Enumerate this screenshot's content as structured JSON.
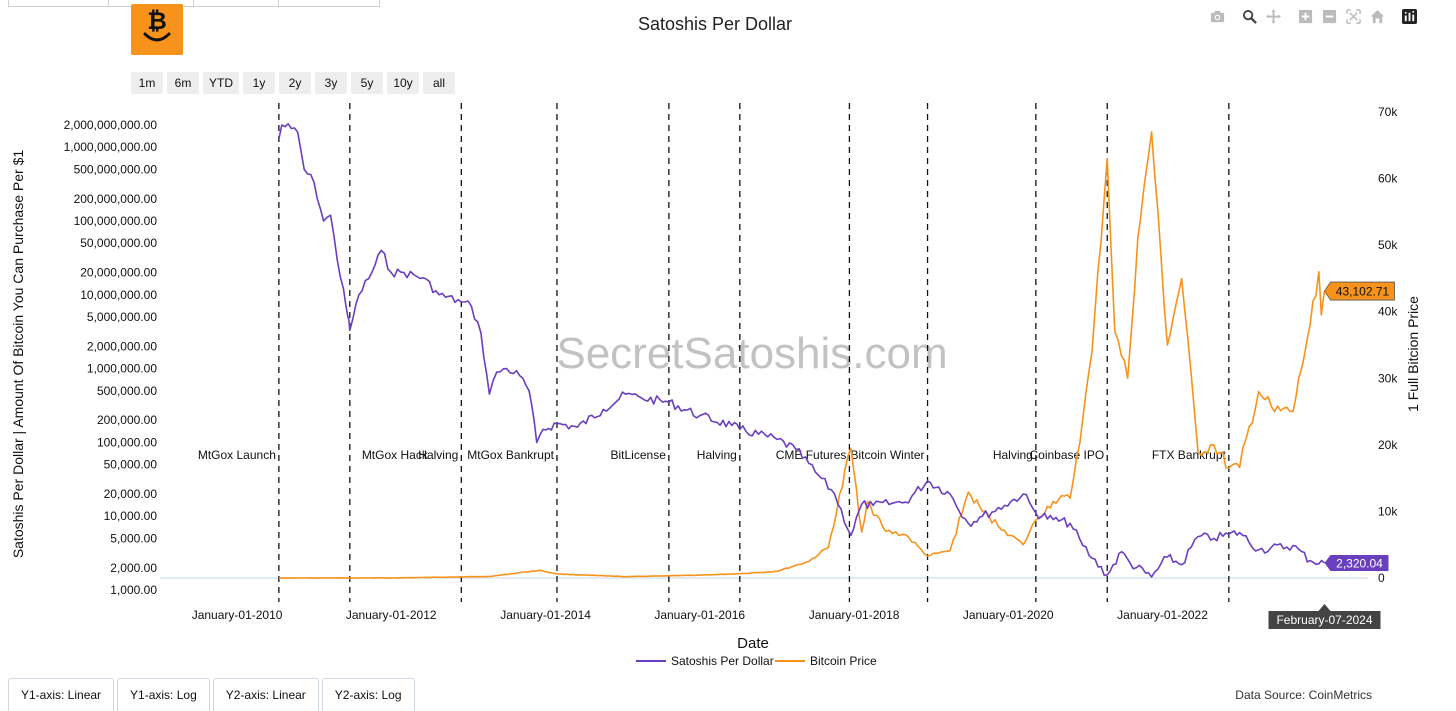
{
  "title": "Satoshis Per Dollar",
  "range_buttons": [
    "1m",
    "6m",
    "YTD",
    "1y",
    "2y",
    "3y",
    "5y",
    "10y",
    "all"
  ],
  "toolbar_icons": [
    "camera-icon",
    "zoom-icon",
    "pan-icon",
    "zoom-in-icon",
    "zoom-out-icon",
    "autoscale-icon",
    "reset-axes-icon",
    "plotly-logo-icon"
  ],
  "bottom_buttons": [
    "Y1-axis: Linear",
    "Y1-axis: Log",
    "Y2-axis: Linear",
    "Y2-axis: Log"
  ],
  "data_source": "Data Source: CoinMetrics",
  "watermark": "SecretSatoshis.com",
  "colors": {
    "sats": "#6a3fbf",
    "btc": "#f7931a",
    "logo_bg": "#f7931a"
  },
  "chart_data": {
    "type": "line",
    "title": "Satoshis Per Dollar",
    "xlabel": "Date",
    "y1label": "Satoshis Per Dollar | Amount Of Bitcoin You Can Purchase Per $1",
    "y2label": "1 Full Bitcion Price",
    "y1_scale": "log",
    "y1_ticks": [
      {
        "v": 1000,
        "label": "1,000.00"
      },
      {
        "v": 2000,
        "label": "2,000.00"
      },
      {
        "v": 5000,
        "label": "5,000.00"
      },
      {
        "v": 10000,
        "label": "10,000.00"
      },
      {
        "v": 20000,
        "label": "20,000.00"
      },
      {
        "v": 50000,
        "label": "50,000.00"
      },
      {
        "v": 100000,
        "label": "100,000.00"
      },
      {
        "v": 200000,
        "label": "200,000.00"
      },
      {
        "v": 500000,
        "label": "500,000.00"
      },
      {
        "v": 1000000,
        "label": "1,000,000.00"
      },
      {
        "v": 2000000,
        "label": "2,000,000.00"
      },
      {
        "v": 5000000,
        "label": "5,000,000.00"
      },
      {
        "v": 10000000,
        "label": "10,000,000.00"
      },
      {
        "v": 20000000,
        "label": "20,000,000.00"
      },
      {
        "v": 50000000,
        "label": "50,000,000.00"
      },
      {
        "v": 100000000,
        "label": "100,000,000.00"
      },
      {
        "v": 200000000,
        "label": "200,000,000.00"
      },
      {
        "v": 500000000,
        "label": "500,000,000.00"
      },
      {
        "v": 1000000000,
        "label": "1,000,000,000.00"
      },
      {
        "v": 2000000000,
        "label": "2,000,000,000.00"
      }
    ],
    "y2_range": [
      0,
      70000
    ],
    "y2_ticks": [
      {
        "v": 0,
        "label": "0"
      },
      {
        "v": 10000,
        "label": "10k"
      },
      {
        "v": 20000,
        "label": "20k"
      },
      {
        "v": 30000,
        "label": "30k"
      },
      {
        "v": 40000,
        "label": "40k"
      },
      {
        "v": 50000,
        "label": "50k"
      },
      {
        "v": 60000,
        "label": "60k"
      },
      {
        "v": 70000,
        "label": "70k"
      }
    ],
    "x_range": [
      "2009-01-01",
      "2024-08-31"
    ],
    "x_ticks": [
      {
        "date": "2010-01-01",
        "label": "January-01-2010"
      },
      {
        "date": "2012-01-01",
        "label": "January-01-2012"
      },
      {
        "date": "2014-01-01",
        "label": "January-01-2014"
      },
      {
        "date": "2016-01-01",
        "label": "January-01-2016"
      },
      {
        "date": "2018-01-01",
        "label": "January-01-2018"
      },
      {
        "date": "2020-01-01",
        "label": "January-01-2020"
      },
      {
        "date": "2022-01-01",
        "label": "January-01-2022"
      }
    ],
    "events": [
      {
        "date": "2010-07-18",
        "label": "MtGox Launch",
        "side": "left"
      },
      {
        "date": "2011-06-19",
        "label": "MtGox Hack",
        "side": "right"
      },
      {
        "date": "2012-11-28",
        "label": "Halving",
        "side": "left"
      },
      {
        "date": "2014-02-24",
        "label": "MtGox Bankrupt",
        "side": "left"
      },
      {
        "date": "2015-08-08",
        "label": "BitLicense",
        "side": "left"
      },
      {
        "date": "2016-07-09",
        "label": "Halving",
        "side": "left"
      },
      {
        "date": "2017-12-10",
        "label": "CME Futures",
        "side": "left"
      },
      {
        "date": "2018-12-15",
        "label": "Bitcoin Winter",
        "side": "left"
      },
      {
        "date": "2020-05-11",
        "label": "Halving",
        "side": "left"
      },
      {
        "date": "2021-04-14",
        "label": "Coinbase IPO",
        "side": "left"
      },
      {
        "date": "2022-11-11",
        "label": "FTX Bankrupt",
        "side": "left"
      }
    ],
    "series": [
      {
        "name": "Satoshis Per Dollar",
        "axis": "y1",
        "points": [
          [
            "2010-07-18",
            1300000000
          ],
          [
            "2010-08-01",
            2000000000
          ],
          [
            "2010-09-15",
            1800000000
          ],
          [
            "2010-10-15",
            1600000000
          ],
          [
            "2010-11-15",
            500000000
          ],
          [
            "2011-01-01",
            330000000
          ],
          [
            "2011-02-15",
            100000000
          ],
          [
            "2011-03-20",
            120000000
          ],
          [
            "2011-04-20",
            30000000
          ],
          [
            "2011-05-20",
            12000000
          ],
          [
            "2011-06-10",
            5000000
          ],
          [
            "2011-06-19",
            3300000
          ],
          [
            "2011-08-01",
            10000000
          ],
          [
            "2011-10-01",
            20000000
          ],
          [
            "2011-11-15",
            40000000
          ],
          [
            "2012-01-01",
            20000000
          ],
          [
            "2012-03-01",
            20000000
          ],
          [
            "2012-06-01",
            17000000
          ],
          [
            "2012-08-15",
            10000000
          ],
          [
            "2012-11-28",
            8000000
          ],
          [
            "2013-01-15",
            7000000
          ],
          [
            "2013-03-01",
            3000000
          ],
          [
            "2013-04-10",
            450000
          ],
          [
            "2013-05-15",
            900000
          ],
          [
            "2013-07-01",
            1000000
          ],
          [
            "2013-09-01",
            800000
          ],
          [
            "2013-10-15",
            500000
          ],
          [
            "2013-11-20",
            100000
          ],
          [
            "2013-12-20",
            150000
          ],
          [
            "2014-02-24",
            180000
          ],
          [
            "2014-06-01",
            160000
          ],
          [
            "2014-10-01",
            280000
          ],
          [
            "2015-01-15",
            450000
          ],
          [
            "2015-04-01",
            400000
          ],
          [
            "2015-08-08",
            350000
          ],
          [
            "2016-01-01",
            230000
          ],
          [
            "2016-06-01",
            170000
          ],
          [
            "2016-07-09",
            150000
          ],
          [
            "2017-01-01",
            110000
          ],
          [
            "2017-04-01",
            80000
          ],
          [
            "2017-07-01",
            40000
          ],
          [
            "2017-10-01",
            20000
          ],
          [
            "2017-12-17",
            5500
          ],
          [
            "2018-02-06",
            14500
          ],
          [
            "2018-04-01",
            14000
          ],
          [
            "2018-07-01",
            15000
          ],
          [
            "2018-09-01",
            15500
          ],
          [
            "2018-12-15",
            30000
          ],
          [
            "2019-04-01",
            20000
          ],
          [
            "2019-06-26",
            8000
          ],
          [
            "2019-09-01",
            10000
          ],
          [
            "2019-12-15",
            14000
          ],
          [
            "2020-03-12",
            20000
          ],
          [
            "2020-05-11",
            11000
          ],
          [
            "2020-08-01",
            9000
          ],
          [
            "2020-10-20",
            8000
          ],
          [
            "2020-12-20",
            4000
          ],
          [
            "2021-02-01",
            2700
          ],
          [
            "2021-04-14",
            1600
          ],
          [
            "2021-06-22",
            3300
          ],
          [
            "2021-08-01",
            2300
          ],
          [
            "2021-11-10",
            1500
          ],
          [
            "2022-01-24",
            2800
          ],
          [
            "2022-04-01",
            2200
          ],
          [
            "2022-06-18",
            5300
          ],
          [
            "2022-09-01",
            5000
          ],
          [
            "2022-11-11",
            5700
          ],
          [
            "2023-01-01",
            6000
          ],
          [
            "2023-04-01",
            3500
          ],
          [
            "2023-09-11",
            4000
          ],
          [
            "2023-12-01",
            2500
          ],
          [
            "2024-02-07",
            2320.04
          ]
        ]
      },
      {
        "name": "Bitcoin Price",
        "axis": "y2",
        "points": [
          [
            "2010-07-18",
            0
          ],
          [
            "2012-01-01",
            5
          ],
          [
            "2013-04-10",
            230
          ],
          [
            "2013-11-30",
            1150
          ],
          [
            "2014-03-01",
            600
          ],
          [
            "2015-01-15",
            200
          ],
          [
            "2016-01-01",
            430
          ],
          [
            "2016-07-09",
            650
          ],
          [
            "2017-01-01",
            1000
          ],
          [
            "2017-06-01",
            2500
          ],
          [
            "2017-09-01",
            4600
          ],
          [
            "2017-12-17",
            19500
          ],
          [
            "2018-02-06",
            6900
          ],
          [
            "2018-03-05",
            11500
          ],
          [
            "2018-06-01",
            7000
          ],
          [
            "2018-09-01",
            6500
          ],
          [
            "2018-12-15",
            3300
          ],
          [
            "2019-04-01",
            4100
          ],
          [
            "2019-06-26",
            12900
          ],
          [
            "2019-09-01",
            10000
          ],
          [
            "2019-12-15",
            7100
          ],
          [
            "2020-03-12",
            5000
          ],
          [
            "2020-05-11",
            8700
          ],
          [
            "2020-08-01",
            11500
          ],
          [
            "2020-10-20",
            12000
          ],
          [
            "2020-12-20",
            24000
          ],
          [
            "2021-02-01",
            34000
          ],
          [
            "2021-04-14",
            63000
          ],
          [
            "2021-05-20",
            37000
          ],
          [
            "2021-07-20",
            30000
          ],
          [
            "2021-09-06",
            51000
          ],
          [
            "2021-11-10",
            67000
          ],
          [
            "2022-01-24",
            35000
          ],
          [
            "2022-04-01",
            45000
          ],
          [
            "2022-06-18",
            19000
          ],
          [
            "2022-09-01",
            20000
          ],
          [
            "2022-11-11",
            16500
          ],
          [
            "2023-01-01",
            16600
          ],
          [
            "2023-04-01",
            28000
          ],
          [
            "2023-06-15",
            25000
          ],
          [
            "2023-09-11",
            25000
          ],
          [
            "2023-12-01",
            38000
          ],
          [
            "2024-01-11",
            46000
          ],
          [
            "2024-01-23",
            39500
          ],
          [
            "2024-02-07",
            43102.71
          ]
        ]
      }
    ],
    "last_values": {
      "sats": "2,320.04",
      "btc": "43,102.71"
    },
    "hover_date": "February-07-2024",
    "legend": {
      "position": "bottom-center",
      "items": [
        "Satoshis Per Dollar",
        "Bitcoin Price"
      ]
    },
    "grid": false
  }
}
